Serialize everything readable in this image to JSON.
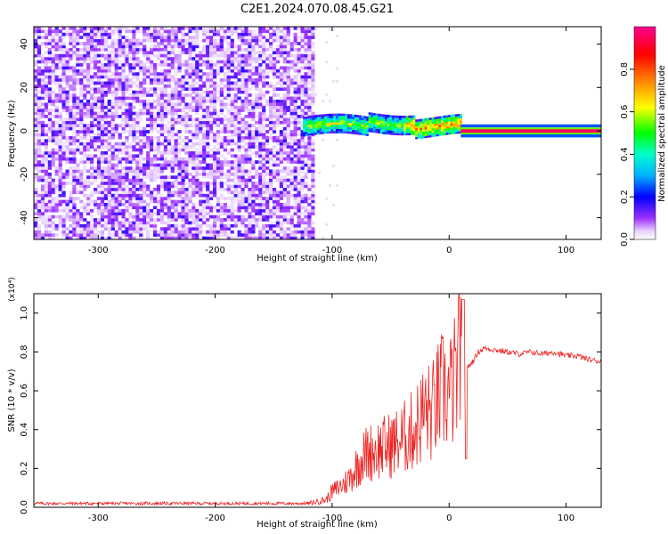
{
  "title": "C2E1.2024.070.08.45.G21",
  "chart_data": [
    {
      "type": "heatmap",
      "xlabel": "Height of straight line (km)",
      "ylabel": "Frequency (Hz)",
      "xlim": [
        -355,
        130
      ],
      "ylim": [
        -50,
        48
      ],
      "xticks": [
        -300,
        -200,
        -100,
        0,
        100
      ],
      "yticks": [
        -40,
        -20,
        0,
        20,
        40
      ],
      "colorbar": {
        "label": "Normalized spectral amplitude",
        "range": [
          0.0,
          1.0
        ],
        "ticks": [
          "0.0",
          "0.2",
          "0.4",
          "0.6",
          "0.8"
        ],
        "colors": [
          "#ffffff",
          "#9b30ff",
          "#0000ff",
          "#00ffff",
          "#00ff00",
          "#ffff00",
          "#ff8000",
          "#ff0000",
          "#ff0080"
        ]
      },
      "regions": [
        {
          "x_range": [
            -355,
            -115
          ],
          "freq_range": [
            -50,
            48
          ],
          "amplitude_range": [
            0.0,
            0.15
          ]
        },
        {
          "x_range": [
            -125,
            10
          ],
          "freq_range": [
            -5,
            8
          ],
          "amplitude_range": [
            0.2,
            0.9
          ]
        },
        {
          "x_range": [
            10,
            130
          ],
          "freq_range": [
            -1,
            1
          ],
          "amplitude_range": [
            0.8,
            1.0
          ]
        }
      ]
    },
    {
      "type": "line",
      "xlabel": "Height of straight line (km)",
      "ylabel": "SNR (10 * v/v)",
      "y_multiplier": "(x10⁴)",
      "xlim": [
        -355,
        130
      ],
      "ylim": [
        0,
        1.1
      ],
      "xticks": [
        -300,
        -200,
        -100,
        0,
        100
      ],
      "yticks": [
        "0.0",
        "0.2",
        "0.4",
        "0.6",
        "0.8",
        "1.0"
      ],
      "color": "#ee2222",
      "series": [
        {
          "x": [
            -355,
            -300,
            -250,
            -200,
            -150,
            -120,
            -105,
            -100,
            -95,
            -90,
            -85,
            -80,
            -75,
            -70,
            -60,
            -50,
            -40,
            -30,
            -25,
            -20,
            -15,
            -10,
            -5,
            0,
            5,
            8,
            10,
            12,
            14,
            16,
            20,
            25,
            30,
            40,
            50,
            60,
            70,
            80,
            90,
            100,
            110,
            120,
            130
          ],
          "y": [
            0.02,
            0.02,
            0.02,
            0.02,
            0.02,
            0.02,
            0.04,
            0.08,
            0.1,
            0.12,
            0.15,
            0.2,
            0.25,
            0.28,
            0.3,
            0.32,
            0.35,
            0.4,
            0.45,
            0.5,
            0.48,
            0.55,
            0.6,
            0.58,
            0.65,
            0.7,
            1.07,
            0.25,
            0.7,
            0.72,
            0.75,
            0.8,
            0.82,
            0.81,
            0.8,
            0.79,
            0.8,
            0.79,
            0.8,
            0.78,
            0.78,
            0.76,
            0.75
          ]
        }
      ]
    }
  ]
}
